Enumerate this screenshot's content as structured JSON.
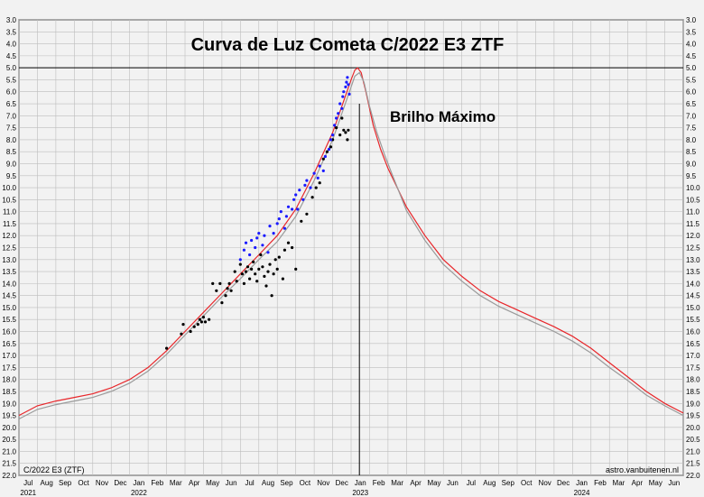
{
  "chart_data": {
    "type": "scatter",
    "title": "Curva de Luz Cometa C/2022 E3 ZTF",
    "annotation": "Brilho Máximo",
    "footer_left": "C/2022 E3 (ZTF)",
    "footer_right": "astro.vanbuitenen.nl",
    "y_inverted": true,
    "ylim": [
      3.0,
      22.0
    ],
    "y_tick_step": 0.5,
    "x_range_months": [
      "2021-07",
      "2024-07"
    ],
    "month_labels": [
      "Jul",
      "Aug",
      "Sep",
      "Oct",
      "Nov",
      "Dec",
      "Jan",
      "Feb",
      "Mar",
      "Apr",
      "May",
      "Jun",
      "Jul",
      "Aug",
      "Sep",
      "Oct",
      "Nov",
      "Dec",
      "Jan",
      "Feb",
      "Mar",
      "Apr",
      "May",
      "Jun",
      "Jul",
      "Aug",
      "Sep",
      "Oct",
      "Nov",
      "Dec",
      "Jan",
      "Feb",
      "Mar",
      "Apr",
      "May",
      "Jun"
    ],
    "year_labels": [
      {
        "label": "2021",
        "month_index": 0
      },
      {
        "label": "2022",
        "month_index": 6
      },
      {
        "label": "2023",
        "month_index": 18
      },
      {
        "label": "2024",
        "month_index": 30
      }
    ],
    "peak_magnitude": 5.0,
    "peak_month_index": 18.45,
    "grid": true,
    "colors": {
      "model_red": "#e8262a",
      "model_gray": "#9a9a9a",
      "obs_black": "#000000",
      "obs_blue": "#1a1aff",
      "grid": "#bdbdbd",
      "background": "#f2f2f2"
    },
    "series": [
      {
        "kind": "curve",
        "color": "red",
        "points": [
          [
            0,
            19.5
          ],
          [
            1,
            19.1
          ],
          [
            2,
            18.9
          ],
          [
            3,
            18.75
          ],
          [
            4,
            18.6
          ],
          [
            5,
            18.35
          ],
          [
            6,
            18.0
          ],
          [
            7,
            17.5
          ],
          [
            8,
            16.8
          ],
          [
            9,
            16.0
          ],
          [
            10,
            15.2
          ],
          [
            11,
            14.4
          ],
          [
            12,
            13.6
          ],
          [
            13,
            12.8
          ],
          [
            14,
            12.0
          ],
          [
            15,
            10.9
          ],
          [
            16,
            9.4
          ],
          [
            17,
            7.7
          ],
          [
            17.5,
            6.6
          ],
          [
            18,
            5.5
          ],
          [
            18.2,
            5.1
          ],
          [
            18.35,
            5.0
          ],
          [
            18.55,
            5.2
          ],
          [
            18.8,
            6.0
          ],
          [
            19.2,
            7.4
          ],
          [
            19.6,
            8.4
          ],
          [
            20,
            9.2
          ],
          [
            21,
            10.8
          ],
          [
            22,
            12.0
          ],
          [
            23,
            13.0
          ],
          [
            24,
            13.7
          ],
          [
            25,
            14.3
          ],
          [
            26,
            14.75
          ],
          [
            27,
            15.1
          ],
          [
            28,
            15.45
          ],
          [
            29,
            15.8
          ],
          [
            30,
            16.2
          ],
          [
            31,
            16.7
          ],
          [
            32,
            17.3
          ],
          [
            33,
            17.9
          ],
          [
            34,
            18.5
          ],
          [
            35,
            19.0
          ],
          [
            36,
            19.4
          ]
        ]
      },
      {
        "kind": "curve",
        "color": "gray",
        "points": [
          [
            0,
            19.65
          ],
          [
            1,
            19.25
          ],
          [
            2,
            19.05
          ],
          [
            3,
            18.9
          ],
          [
            4,
            18.75
          ],
          [
            5,
            18.5
          ],
          [
            6,
            18.15
          ],
          [
            7,
            17.65
          ],
          [
            8,
            16.95
          ],
          [
            9,
            16.15
          ],
          [
            10,
            15.35
          ],
          [
            11,
            14.55
          ],
          [
            12,
            13.8
          ],
          [
            13,
            13.0
          ],
          [
            14,
            12.25
          ],
          [
            15,
            11.2
          ],
          [
            16,
            9.7
          ],
          [
            17,
            8.0
          ],
          [
            17.5,
            6.9
          ],
          [
            18,
            5.8
          ],
          [
            18.2,
            5.35
          ],
          [
            18.45,
            5.2
          ],
          [
            18.7,
            5.6
          ],
          [
            19,
            6.6
          ],
          [
            19.4,
            7.7
          ],
          [
            19.8,
            8.6
          ],
          [
            20.2,
            9.4
          ],
          [
            21,
            10.95
          ],
          [
            22,
            12.2
          ],
          [
            23,
            13.2
          ],
          [
            24,
            13.9
          ],
          [
            25,
            14.5
          ],
          [
            26,
            14.95
          ],
          [
            27,
            15.3
          ],
          [
            28,
            15.65
          ],
          [
            29,
            16.0
          ],
          [
            30,
            16.4
          ],
          [
            31,
            16.9
          ],
          [
            32,
            17.5
          ],
          [
            33,
            18.05
          ],
          [
            34,
            18.65
          ],
          [
            35,
            19.1
          ],
          [
            36,
            19.5
          ]
        ]
      },
      {
        "kind": "points",
        "name": "black",
        "points": [
          [
            8.0,
            16.7
          ],
          [
            8.8,
            16.1
          ],
          [
            8.9,
            15.7
          ],
          [
            9.3,
            16.0
          ],
          [
            9.5,
            15.8
          ],
          [
            9.7,
            15.7
          ],
          [
            9.8,
            15.5
          ],
          [
            9.9,
            15.6
          ],
          [
            10.0,
            15.4
          ],
          [
            10.1,
            15.6
          ],
          [
            10.3,
            15.5
          ],
          [
            10.5,
            14.0
          ],
          [
            10.7,
            14.3
          ],
          [
            10.9,
            14.0
          ],
          [
            11.0,
            14.8
          ],
          [
            11.2,
            14.5
          ],
          [
            11.3,
            14.2
          ],
          [
            11.4,
            14.0
          ],
          [
            11.5,
            14.3
          ],
          [
            11.7,
            13.5
          ],
          [
            11.8,
            13.9
          ],
          [
            12.0,
            13.2
          ],
          [
            12.1,
            13.6
          ],
          [
            12.2,
            14.0
          ],
          [
            12.3,
            13.5
          ],
          [
            12.4,
            13.3
          ],
          [
            12.5,
            13.8
          ],
          [
            12.6,
            13.4
          ],
          [
            12.7,
            13.1
          ],
          [
            12.8,
            13.6
          ],
          [
            12.9,
            13.9
          ],
          [
            13.0,
            13.4
          ],
          [
            13.1,
            12.8
          ],
          [
            13.2,
            13.3
          ],
          [
            13.3,
            13.7
          ],
          [
            13.4,
            14.1
          ],
          [
            13.5,
            13.5
          ],
          [
            13.6,
            13.2
          ],
          [
            13.7,
            14.5
          ],
          [
            13.8,
            13.6
          ],
          [
            13.9,
            13.0
          ],
          [
            14.0,
            13.4
          ],
          [
            14.1,
            12.9
          ],
          [
            14.3,
            13.8
          ],
          [
            14.4,
            12.6
          ],
          [
            14.6,
            12.3
          ],
          [
            14.8,
            12.5
          ],
          [
            15.0,
            13.4
          ],
          [
            15.3,
            11.4
          ],
          [
            15.6,
            11.1
          ],
          [
            15.9,
            10.4
          ],
          [
            16.1,
            10.0
          ],
          [
            16.3,
            9.8
          ],
          [
            16.5,
            8.8
          ],
          [
            16.7,
            8.5
          ],
          [
            16.9,
            8.3
          ],
          [
            17.0,
            8.0
          ],
          [
            17.2,
            7.5
          ],
          [
            17.4,
            7.8
          ],
          [
            17.5,
            7.1
          ],
          [
            17.6,
            7.6
          ],
          [
            17.7,
            7.7
          ],
          [
            17.8,
            8.0
          ],
          [
            17.85,
            7.6
          ]
        ]
      },
      {
        "kind": "points",
        "name": "blue",
        "points": [
          [
            12.0,
            13.0
          ],
          [
            12.2,
            12.6
          ],
          [
            12.3,
            12.3
          ],
          [
            12.5,
            12.8
          ],
          [
            12.6,
            12.2
          ],
          [
            12.8,
            12.5
          ],
          [
            12.9,
            12.1
          ],
          [
            13.0,
            11.9
          ],
          [
            13.2,
            12.4
          ],
          [
            13.3,
            12.0
          ],
          [
            13.5,
            12.7
          ],
          [
            13.6,
            11.6
          ],
          [
            13.8,
            11.9
          ],
          [
            14.0,
            11.5
          ],
          [
            14.1,
            11.3
          ],
          [
            14.2,
            11.0
          ],
          [
            14.4,
            11.7
          ],
          [
            14.5,
            11.2
          ],
          [
            14.6,
            10.8
          ],
          [
            14.8,
            10.9
          ],
          [
            14.9,
            10.5
          ],
          [
            15.0,
            10.3
          ],
          [
            15.1,
            10.9
          ],
          [
            15.2,
            10.1
          ],
          [
            15.4,
            10.5
          ],
          [
            15.5,
            9.9
          ],
          [
            15.6,
            9.7
          ],
          [
            15.8,
            10.0
          ],
          [
            16.0,
            9.4
          ],
          [
            16.2,
            9.6
          ],
          [
            16.3,
            9.1
          ],
          [
            16.5,
            9.3
          ],
          [
            16.6,
            8.7
          ],
          [
            16.8,
            8.4
          ],
          [
            16.9,
            8.0
          ],
          [
            17.0,
            7.8
          ],
          [
            17.1,
            7.4
          ],
          [
            17.2,
            7.1
          ],
          [
            17.3,
            6.9
          ],
          [
            17.4,
            6.5
          ],
          [
            17.5,
            6.7
          ],
          [
            17.55,
            6.2
          ],
          [
            17.6,
            6.0
          ],
          [
            17.7,
            5.8
          ],
          [
            17.75,
            5.6
          ],
          [
            17.8,
            5.4
          ],
          [
            17.85,
            5.7
          ],
          [
            17.9,
            6.1
          ]
        ]
      }
    ]
  }
}
